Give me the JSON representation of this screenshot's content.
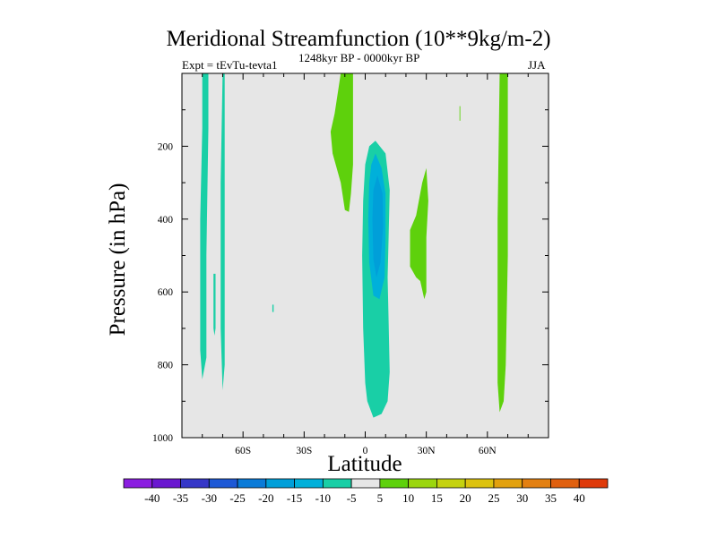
{
  "chart_data": {
    "type": "heatmap",
    "title": "Meridional Streamfunction (10**9kg/m-2)",
    "subtitle_left": "Expt = tEvTu-tevta1",
    "subtitle_center": "1248kyr BP - 0000kyr BP",
    "subtitle_right": "JJA",
    "xlabel": "Latitude",
    "ylabel": "Pressure (in hPa)",
    "xlim": [
      -90,
      90
    ],
    "ylim": [
      1000,
      0
    ],
    "x_ticks": [
      {
        "value": -60,
        "label": "60S"
      },
      {
        "value": -30,
        "label": "30S"
      },
      {
        "value": 0,
        "label": "0"
      },
      {
        "value": 30,
        "label": "30N"
      },
      {
        "value": 60,
        "label": "60N"
      }
    ],
    "y_ticks": [
      {
        "value": 200,
        "label": "200"
      },
      {
        "value": 400,
        "label": "400"
      },
      {
        "value": 600,
        "label": "600"
      },
      {
        "value": 800,
        "label": "800"
      },
      {
        "value": 1000,
        "label": "1000"
      }
    ],
    "background_color": "#e6e6e6",
    "contour_regions": [
      {
        "name": "neg-band-80S",
        "level": -5,
        "color": "#19cfa6",
        "points": [
          [
            -80,
            0
          ],
          [
            -77,
            0
          ],
          [
            -77,
            150
          ],
          [
            -78,
            500
          ],
          [
            -78,
            780
          ],
          [
            -80,
            840
          ],
          [
            -81,
            760
          ],
          [
            -81,
            400
          ],
          [
            -80,
            150
          ]
        ]
      },
      {
        "name": "neg-band-72S",
        "level": -5,
        "color": "#19cfa6",
        "points": [
          [
            -70,
            0
          ],
          [
            -69,
            0
          ],
          [
            -69,
            300
          ],
          [
            -69,
            800
          ],
          [
            -70,
            870
          ],
          [
            -71,
            700
          ],
          [
            -71,
            300
          ]
        ]
      },
      {
        "name": "neg-sliver-74S",
        "level": -5,
        "color": "#19cfa6",
        "points": [
          [
            -74.5,
            550
          ],
          [
            -73.5,
            550
          ],
          [
            -73.5,
            700
          ],
          [
            -74,
            720
          ],
          [
            -74.5,
            700
          ]
        ]
      },
      {
        "name": "neg-dot-45S",
        "level": -5,
        "color": "#19cfa6",
        "points": [
          [
            -45.6,
            635
          ],
          [
            -45.0,
            635
          ],
          [
            -45.0,
            655
          ],
          [
            -45.6,
            655
          ]
        ]
      },
      {
        "name": "neg-cell-equator",
        "level": -5,
        "color": "#19cfa6",
        "points": [
          [
            5,
            185
          ],
          [
            10,
            220
          ],
          [
            12,
            320
          ],
          [
            11.5,
            450
          ],
          [
            11,
            560
          ],
          [
            11.5,
            680
          ],
          [
            12,
            820
          ],
          [
            11,
            900
          ],
          [
            8,
            935
          ],
          [
            4,
            945
          ],
          [
            1,
            900
          ],
          [
            0,
            850
          ],
          [
            -1,
            700
          ],
          [
            -1.5,
            500
          ],
          [
            -1,
            350
          ],
          [
            0,
            250
          ],
          [
            2,
            200
          ]
        ]
      },
      {
        "name": "neg-core-10",
        "level": -10,
        "color": "#00b0da",
        "points": [
          [
            5,
            220
          ],
          [
            8,
            260
          ],
          [
            10,
            330
          ],
          [
            10,
            450
          ],
          [
            9.5,
            560
          ],
          [
            7,
            620
          ],
          [
            4,
            610
          ],
          [
            2,
            520
          ],
          [
            1.5,
            400
          ],
          [
            2,
            300
          ],
          [
            3,
            250
          ]
        ]
      },
      {
        "name": "neg-core-15",
        "level": -15,
        "color": "#009fd9",
        "points": [
          [
            6,
            280
          ],
          [
            8.5,
            330
          ],
          [
            8.8,
            420
          ],
          [
            7.5,
            520
          ],
          [
            5.5,
            560
          ],
          [
            4,
            510
          ],
          [
            3.5,
            400
          ],
          [
            4,
            320
          ]
        ]
      },
      {
        "name": "pos-upper-15S",
        "level": 5,
        "color": "#5ed10c",
        "points": [
          [
            -12,
            0
          ],
          [
            -6,
            0
          ],
          [
            -6,
            250
          ],
          [
            -7,
            330
          ],
          [
            -8,
            380
          ],
          [
            -10,
            375
          ],
          [
            -12,
            300
          ],
          [
            -16,
            220
          ],
          [
            -17,
            160
          ],
          [
            -15,
            110
          ]
        ]
      },
      {
        "name": "pos-mid-25N",
        "level": 5,
        "color": "#5ed10c",
        "points": [
          [
            30,
            260
          ],
          [
            31,
            350
          ],
          [
            30,
            450
          ],
          [
            30,
            600
          ],
          [
            29,
            620
          ],
          [
            27,
            570
          ],
          [
            25,
            560
          ],
          [
            22,
            530
          ],
          [
            22,
            430
          ],
          [
            25,
            390
          ],
          [
            28,
            300
          ]
        ]
      },
      {
        "name": "pos-dot-47N",
        "level": 5,
        "color": "#5ed10c",
        "points": [
          [
            46.3,
            90
          ],
          [
            46.7,
            90
          ],
          [
            46.7,
            130
          ],
          [
            46.3,
            130
          ]
        ]
      },
      {
        "name": "pos-band-67N",
        "level": 5,
        "color": "#5ed10c",
        "points": [
          [
            66,
            0
          ],
          [
            70,
            0
          ],
          [
            70,
            500
          ],
          [
            69,
            800
          ],
          [
            68,
            900
          ],
          [
            66,
            930
          ],
          [
            65,
            850
          ],
          [
            65,
            400
          ]
        ]
      }
    ],
    "colorbar": {
      "levels": [
        -40,
        -35,
        -30,
        -25,
        -20,
        -15,
        -10,
        -5,
        5,
        10,
        15,
        20,
        25,
        30,
        35,
        40
      ],
      "colors": [
        "#8b1ee0",
        "#6a18d0",
        "#3637c8",
        "#1e59d6",
        "#0a7bd8",
        "#009fd9",
        "#00b0da",
        "#19cfa6",
        "#e6e6e6",
        "#5ed10c",
        "#9bd60e",
        "#c5d20f",
        "#dcc20e",
        "#e2a10e",
        "#e38012",
        "#e0600f",
        "#df3a0a"
      ]
    }
  }
}
